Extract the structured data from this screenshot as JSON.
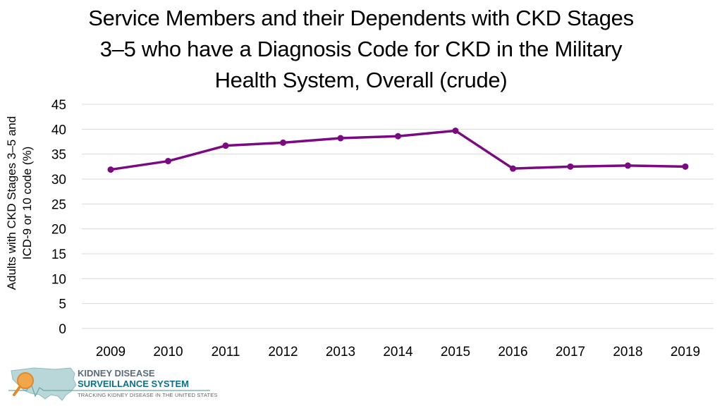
{
  "chart_data": {
    "type": "line",
    "title_lines": [
      "Service Members and their Dependents with CKD Stages",
      "3–5 who have a Diagnosis Code for CKD in the Military",
      "Health System, Overall (crude)"
    ],
    "ylabel_lines": [
      "Adults with CKD Stages 3–5 and",
      "ICD-9 or 10 code (%)"
    ],
    "xlabel": "",
    "categories": [
      "2009",
      "2010",
      "2011",
      "2012",
      "2013",
      "2014",
      "2015",
      "2016",
      "2017",
      "2018",
      "2019"
    ],
    "series": [
      {
        "values": [
          31.9,
          33.6,
          36.7,
          37.3,
          38.2,
          38.6,
          39.7,
          32.1,
          32.5,
          32.7,
          32.5
        ]
      }
    ],
    "ylim": [
      0,
      45
    ],
    "yticks": [
      0,
      5,
      10,
      15,
      20,
      25,
      30,
      35,
      40,
      45
    ],
    "grid": true,
    "line_color": "#7b0a82",
    "grid_color": "#d9d9d9"
  },
  "logo": {
    "line1": "KIDNEY DISEASE",
    "line2": "SURVEILLANCE SYSTEM",
    "line3": "TRACKING KIDNEY DISEASE IN THE UNITED STATES"
  }
}
